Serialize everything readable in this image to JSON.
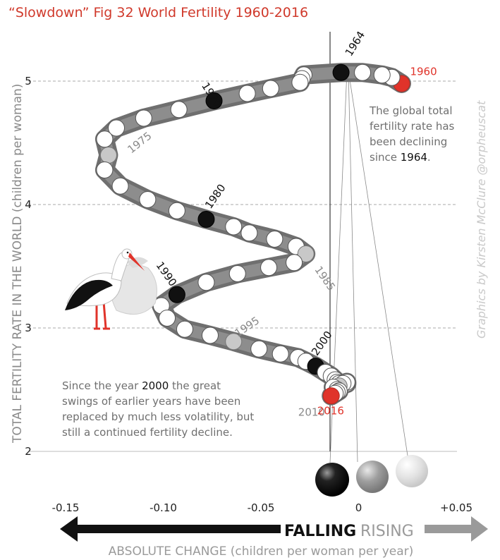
{
  "title": "“Slowdown” Fig 32 World Fertility 1960-2016",
  "y_axis_label": "TOTAL FERTILITY RATE IN THE WORLD (children per woman)",
  "x_axis_label": "ABSOLUTE CHANGE (children per woman per year)",
  "y_ticks": [
    "2",
    "3",
    "4",
    "5"
  ],
  "x_ticks": [
    "-0.15",
    "-0.10",
    "-0.05",
    "0",
    "+0.05"
  ],
  "direction": {
    "falling": "FALLING",
    "rising": "RISING"
  },
  "credit": "Graphics by Kirsten McClure @orpheuscat",
  "annotation_top": {
    "line1": "The global total",
    "line2": "fertility rate has",
    "line3": "been declining",
    "line4_prefix": "since ",
    "line4_year": "1964",
    "line4_suffix": "."
  },
  "annotation_bottom": {
    "line1_prefix": "Since the year ",
    "line1_year": "2000",
    "line1_suffix": " the great",
    "line2": "swings of earlier years have been",
    "line3": "replaced by much less volatility, but",
    "line4": "still a continued fertility decline."
  },
  "colors": {
    "title": "#d0392b",
    "highlight_red": "#e0332a",
    "decade_black": "#111111",
    "midyear_grey": "#c8c8c8",
    "ribbon": "#8a8a8a",
    "rising_arrow": "#9a9a9a"
  },
  "legend_balls": [
    "black-sphere",
    "grey-sphere",
    "light-grey-sphere"
  ],
  "icons": [
    "stork-carrying-baby-icon"
  ],
  "chart_data": {
    "type": "scatter",
    "connected": true,
    "xlim": [
      -0.15,
      0.05
    ],
    "ylim": [
      2,
      5
    ],
    "grid": "horizontal-dashed",
    "x_label": "ABSOLUTE CHANGE (children per woman per year)",
    "y_label": "TOTAL FERTILITY RATE IN THE WORLD (children per woman)",
    "points": [
      {
        "year": 1960,
        "x": 0.022,
        "y": 4.98
      },
      {
        "year": 1961,
        "x": 0.017,
        "y": 5.03
      },
      {
        "year": 1962,
        "x": 0.012,
        "y": 5.05
      },
      {
        "year": 1963,
        "x": 0.002,
        "y": 5.07
      },
      {
        "year": 1964,
        "x": -0.009,
        "y": 5.07
      },
      {
        "year": 1965,
        "x": -0.028,
        "y": 5.05
      },
      {
        "year": 1966,
        "x": -0.029,
        "y": 5.02
      },
      {
        "year": 1967,
        "x": -0.03,
        "y": 4.99
      },
      {
        "year": 1968,
        "x": -0.045,
        "y": 4.94
      },
      {
        "year": 1969,
        "x": -0.057,
        "y": 4.9
      },
      {
        "year": 1970,
        "x": -0.074,
        "y": 4.84
      },
      {
        "year": 1971,
        "x": -0.092,
        "y": 4.77
      },
      {
        "year": 1972,
        "x": -0.11,
        "y": 4.7
      },
      {
        "year": 1973,
        "x": -0.124,
        "y": 4.62
      },
      {
        "year": 1974,
        "x": -0.13,
        "y": 4.53
      },
      {
        "year": 1975,
        "x": -0.128,
        "y": 4.4
      },
      {
        "year": 1976,
        "x": -0.13,
        "y": 4.28
      },
      {
        "year": 1977,
        "x": -0.122,
        "y": 4.15
      },
      {
        "year": 1978,
        "x": -0.108,
        "y": 4.04
      },
      {
        "year": 1979,
        "x": -0.093,
        "y": 3.95
      },
      {
        "year": 1980,
        "x": -0.078,
        "y": 3.88
      },
      {
        "year": 1981,
        "x": -0.064,
        "y": 3.82
      },
      {
        "year": 1982,
        "x": -0.056,
        "y": 3.77
      },
      {
        "year": 1983,
        "x": -0.043,
        "y": 3.72
      },
      {
        "year": 1984,
        "x": -0.032,
        "y": 3.66
      },
      {
        "year": 1985,
        "x": -0.027,
        "y": 3.6
      },
      {
        "year": 1986,
        "x": -0.033,
        "y": 3.53
      },
      {
        "year": 1987,
        "x": -0.046,
        "y": 3.49
      },
      {
        "year": 1988,
        "x": -0.062,
        "y": 3.44
      },
      {
        "year": 1989,
        "x": -0.078,
        "y": 3.37
      },
      {
        "year": 1990,
        "x": -0.093,
        "y": 3.27
      },
      {
        "year": 1991,
        "x": -0.101,
        "y": 3.18
      },
      {
        "year": 1992,
        "x": -0.098,
        "y": 3.08
      },
      {
        "year": 1993,
        "x": -0.089,
        "y": 2.99
      },
      {
        "year": 1994,
        "x": -0.076,
        "y": 2.94
      },
      {
        "year": 1995,
        "x": -0.064,
        "y": 2.89
      },
      {
        "year": 1996,
        "x": -0.051,
        "y": 2.83
      },
      {
        "year": 1997,
        "x": -0.04,
        "y": 2.79
      },
      {
        "year": 1998,
        "x": -0.031,
        "y": 2.76
      },
      {
        "year": 1999,
        "x": -0.027,
        "y": 2.73
      },
      {
        "year": 2000,
        "x": -0.022,
        "y": 2.69
      },
      {
        "year": 2001,
        "x": -0.017,
        "y": 2.64
      },
      {
        "year": 2002,
        "x": -0.014,
        "y": 2.61
      },
      {
        "year": 2003,
        "x": -0.012,
        "y": 2.58
      },
      {
        "year": 2004,
        "x": -0.011,
        "y": 2.56
      },
      {
        "year": 2005,
        "x": -0.01,
        "y": 2.55
      },
      {
        "year": 2006,
        "x": -0.008,
        "y": 2.54
      },
      {
        "year": 2007,
        "x": -0.006,
        "y": 2.55
      },
      {
        "year": 2008,
        "x": -0.006,
        "y": 2.56
      },
      {
        "year": 2009,
        "x": -0.008,
        "y": 2.55
      },
      {
        "year": 2010,
        "x": -0.01,
        "y": 2.53
      },
      {
        "year": 2011,
        "x": -0.013,
        "y": 2.52
      },
      {
        "year": 2012,
        "x": -0.011,
        "y": 2.5
      },
      {
        "year": 2013,
        "x": -0.01,
        "y": 2.49
      },
      {
        "year": 2014,
        "x": -0.011,
        "y": 2.48
      },
      {
        "year": 2015,
        "x": -0.012,
        "y": 2.47
      },
      {
        "year": 2016,
        "x": -0.014,
        "y": 2.45
      }
    ],
    "decade_years": [
      1970,
      1980,
      1990,
      2000
    ],
    "midyear_years": [
      1975,
      1985,
      1995,
      2010
    ],
    "highlight_years": [
      1960,
      2016
    ],
    "black_years": [
      1964
    ],
    "year_labels": [
      {
        "year": 1960,
        "label": "1960",
        "style": "red"
      },
      {
        "year": 1964,
        "label": "1964",
        "style": "black"
      },
      {
        "year": 1970,
        "label": "1970",
        "style": "black"
      },
      {
        "year": 1975,
        "label": "1975",
        "style": "grey"
      },
      {
        "year": 1980,
        "label": "1980",
        "style": "black"
      },
      {
        "year": 1985,
        "label": "1985",
        "style": "grey"
      },
      {
        "year": 1990,
        "label": "1990",
        "style": "black"
      },
      {
        "year": 1995,
        "label": "1995",
        "style": "grey"
      },
      {
        "year": 2000,
        "label": "2000",
        "style": "black"
      },
      {
        "year": 2010,
        "label": "2010",
        "style": "grey"
      },
      {
        "year": 2016,
        "label": "2016",
        "style": "red"
      }
    ]
  }
}
